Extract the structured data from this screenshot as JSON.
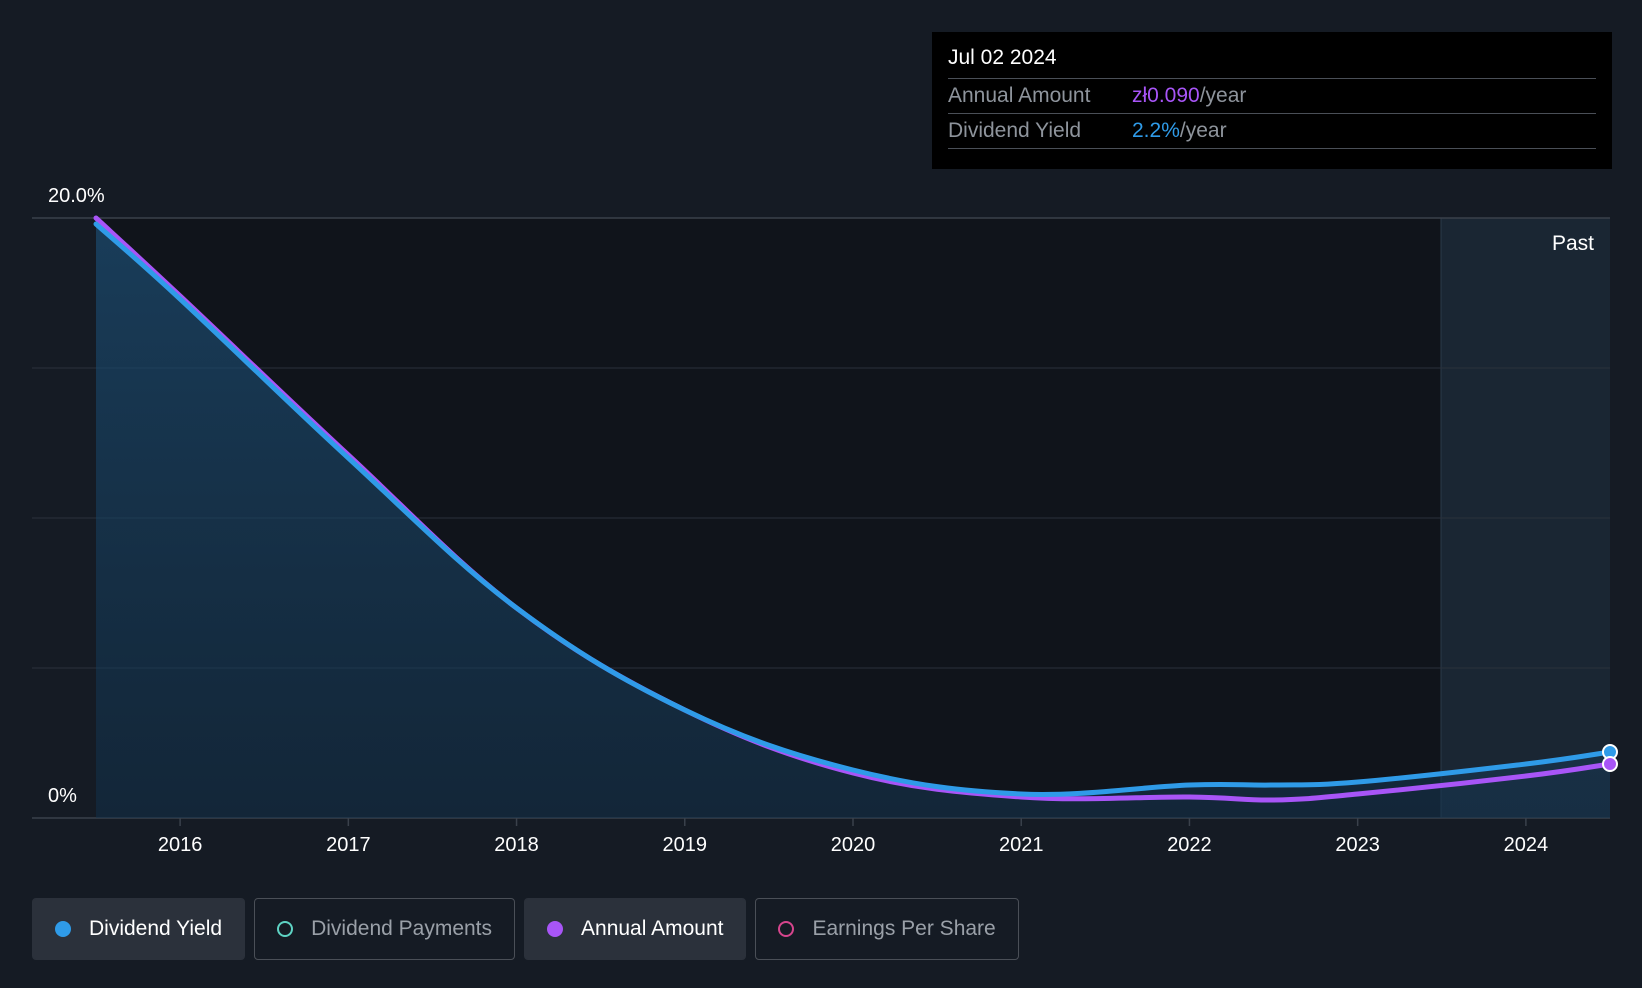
{
  "tooltip": {
    "date": "Jul 02 2024",
    "rows": [
      {
        "label": "Annual Amount",
        "value": "zł0.090",
        "unit": "/year"
      },
      {
        "label": "Dividend Yield",
        "value": "2.2%",
        "unit": "/year"
      }
    ]
  },
  "legend": [
    {
      "label": "Dividend Yield",
      "color": "#2f9be8",
      "active": true
    },
    {
      "label": "Dividend Payments",
      "color": "#5ed3c4",
      "active": false
    },
    {
      "label": "Annual Amount",
      "color": "#a855f7",
      "active": true
    },
    {
      "label": "Earnings Per Share",
      "color": "#d6458d",
      "active": false
    }
  ],
  "chart_data": {
    "type": "area",
    "ylim": [
      0,
      20
    ],
    "y_tick_labels": [
      "20.0%",
      "0%"
    ],
    "x_tick_labels": [
      "2016",
      "2017",
      "2018",
      "2019",
      "2020",
      "2021",
      "2022",
      "2023",
      "2024"
    ],
    "past_label": "Past",
    "past_region_start": 2023.5,
    "grid": true,
    "series": [
      {
        "name": "Dividend Yield",
        "color": "#2f9be8",
        "area": true,
        "x": [
          2015.5,
          2016,
          2017,
          2018,
          2019,
          2020,
          2021,
          2022,
          2022.5,
          2023,
          2024,
          2024.5
        ],
        "y": [
          19.8,
          17.3,
          12.0,
          7.0,
          3.6,
          1.6,
          0.8,
          1.1,
          1.1,
          1.2,
          1.8,
          2.2
        ]
      },
      {
        "name": "Annual Amount",
        "color": "#a855f7",
        "area": false,
        "x": [
          2015.5,
          2016,
          2017,
          2018,
          2019,
          2020,
          2021,
          2022,
          2022.5,
          2023,
          2024,
          2024.5
        ],
        "y": [
          20.0,
          17.4,
          12.1,
          7.0,
          3.6,
          1.5,
          0.7,
          0.7,
          0.6,
          0.8,
          1.4,
          1.8
        ]
      }
    ]
  }
}
